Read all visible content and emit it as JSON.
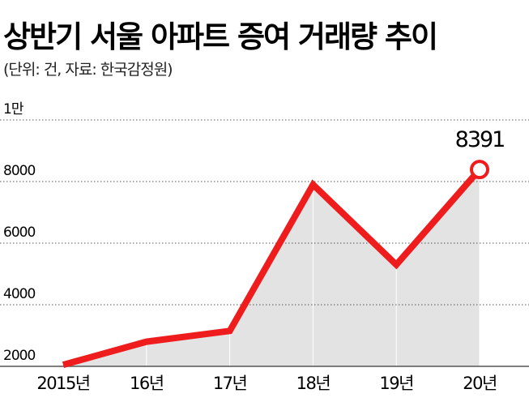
{
  "chart_data": {
    "type": "line",
    "title": "상반기 서울 아파트 증여 거래량 추이",
    "subtitle": "(단위: 건, 자료: 한국감정원)",
    "categories": [
      "2015년",
      "16년",
      "17년",
      "18년",
      "19년",
      "20년"
    ],
    "values": [
      2050,
      2800,
      3150,
      7900,
      5300,
      8391
    ],
    "value_labels": [
      null,
      null,
      null,
      null,
      null,
      "8391"
    ],
    "color": "#ee1c1c",
    "area_color": "#e3e3e3",
    "ylim": [
      2000,
      10000
    ],
    "yticks": [
      2000,
      4000,
      6000,
      8000,
      {
        "value": 10000,
        "label": "1만"
      }
    ],
    "grid": true
  }
}
